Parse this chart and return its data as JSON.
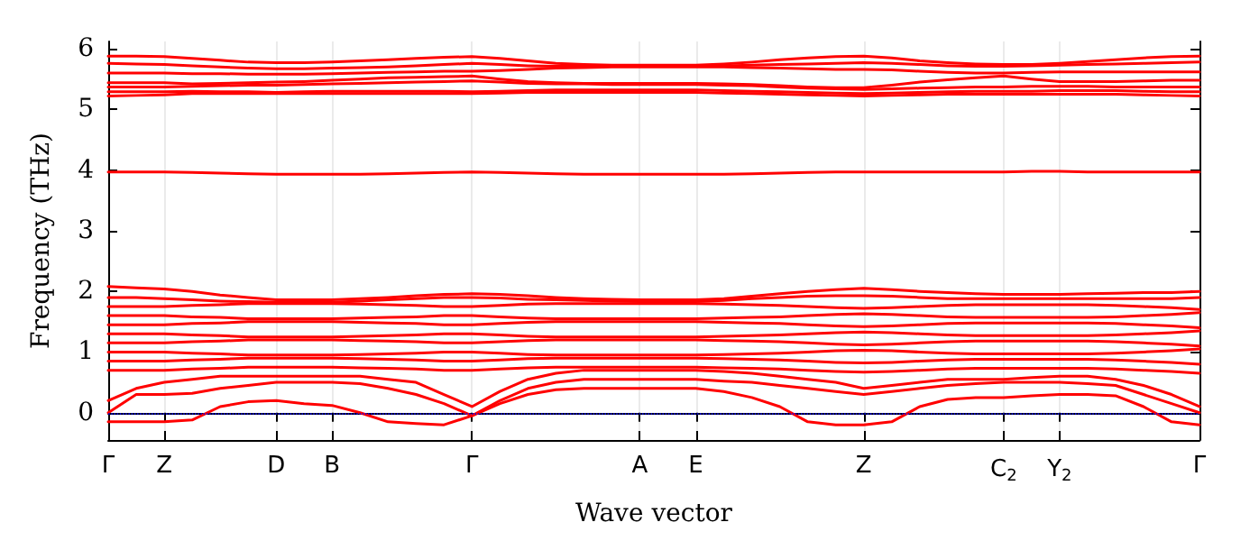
{
  "chart_data": {
    "type": "line",
    "xlabel": "Wave vector",
    "ylabel": "Frequency (THz)",
    "categories": [
      "Γ",
      null,
      "Z",
      null,
      null,
      null,
      "D",
      null,
      "B",
      null,
      null,
      null,
      null,
      "Γ",
      null,
      null,
      null,
      null,
      null,
      "A",
      null,
      "E",
      null,
      null,
      null,
      null,
      null,
      "Z",
      null,
      null,
      null,
      null,
      "C$_{2}$",
      null,
      "Y$_{2}$",
      null,
      null,
      null,
      null,
      "Γ"
    ],
    "ylim": [
      -0.45,
      6.12
    ],
    "yticks": [
      0,
      1,
      2,
      3,
      4,
      5,
      6
    ],
    "grid": "x",
    "marker": "none",
    "line_style": "solid",
    "ref_lines": [
      {
        "axis": "y",
        "value": 0,
        "label": null,
        "color": "#0000ff",
        "line_style": "dotted"
      }
    ],
    "series": [
      {
        "color": "#ff0000",
        "values": [
          -0.15,
          -0.15,
          -0.15,
          -0.12,
          0.1,
          0.18,
          0.2,
          0.15,
          0.12,
          0.0,
          -0.15,
          -0.18,
          -0.2,
          -0.05,
          0.15,
          0.3,
          0.38,
          0.4,
          0.4,
          0.4,
          0.4,
          0.4,
          0.35,
          0.25,
          0.1,
          -0.15,
          -0.2,
          -0.2,
          -0.15,
          0.1,
          0.22,
          0.25,
          0.25,
          0.28,
          0.3,
          0.3,
          0.28,
          0.1,
          -0.15,
          -0.2
        ]
      },
      {
        "color": "#ff0000",
        "values": [
          0,
          0.3,
          0.3,
          0.32,
          0.4,
          0.45,
          0.5,
          0.5,
          0.5,
          0.48,
          0.4,
          0.3,
          0.15,
          -0.05,
          0.2,
          0.4,
          0.5,
          0.55,
          0.55,
          0.55,
          0.55,
          0.55,
          0.52,
          0.5,
          0.45,
          0.4,
          0.35,
          0.3,
          0.35,
          0.4,
          0.45,
          0.48,
          0.5,
          0.5,
          0.5,
          0.48,
          0.45,
          0.3,
          0.15,
          0
        ]
      },
      {
        "color": "#ff0000",
        "values": [
          0.2,
          0.4,
          0.5,
          0.55,
          0.6,
          0.6,
          0.6,
          0.6,
          0.6,
          0.6,
          0.55,
          0.5,
          0.3,
          0.1,
          0.35,
          0.55,
          0.65,
          0.7,
          0.7,
          0.7,
          0.7,
          0.7,
          0.68,
          0.65,
          0.6,
          0.55,
          0.5,
          0.4,
          0.45,
          0.5,
          0.55,
          0.55,
          0.55,
          0.58,
          0.6,
          0.6,
          0.55,
          0.45,
          0.3,
          0.1
        ]
      },
      {
        "color": "#ff0000",
        "values": [
          0.7,
          0.7,
          0.7,
          0.72,
          0.73,
          0.75,
          0.75,
          0.75,
          0.75,
          0.74,
          0.73,
          0.72,
          0.7,
          0.7,
          0.72,
          0.74,
          0.75,
          0.75,
          0.75,
          0.75,
          0.75,
          0.75,
          0.74,
          0.73,
          0.72,
          0.7,
          0.68,
          0.67,
          0.68,
          0.7,
          0.72,
          0.73,
          0.73,
          0.73,
          0.73,
          0.73,
          0.72,
          0.7,
          0.68,
          0.65
        ]
      },
      {
        "color": "#ff0000",
        "values": [
          0.85,
          0.85,
          0.85,
          0.87,
          0.88,
          0.9,
          0.9,
          0.9,
          0.9,
          0.89,
          0.88,
          0.87,
          0.85,
          0.85,
          0.87,
          0.89,
          0.9,
          0.9,
          0.9,
          0.9,
          0.9,
          0.9,
          0.89,
          0.88,
          0.87,
          0.85,
          0.83,
          0.82,
          0.83,
          0.85,
          0.87,
          0.88,
          0.88,
          0.88,
          0.88,
          0.88,
          0.87,
          0.85,
          0.83,
          0.8
        ]
      },
      {
        "color": "#ff0000",
        "values": [
          1.0,
          1.0,
          1.0,
          0.98,
          0.97,
          0.95,
          0.95,
          0.95,
          0.95,
          0.96,
          0.97,
          0.98,
          1.0,
          1.0,
          0.98,
          0.96,
          0.95,
          0.95,
          0.95,
          0.95,
          0.95,
          0.95,
          0.96,
          0.97,
          0.98,
          1.0,
          1.02,
          1.03,
          1.02,
          1.0,
          0.98,
          0.97,
          0.97,
          0.97,
          0.97,
          0.97,
          0.98,
          1.0,
          1.02,
          1.05
        ]
      },
      {
        "color": "#ff0000",
        "values": [
          1.15,
          1.15,
          1.15,
          1.17,
          1.18,
          1.2,
          1.2,
          1.2,
          1.2,
          1.19,
          1.18,
          1.17,
          1.15,
          1.15,
          1.17,
          1.19,
          1.2,
          1.2,
          1.2,
          1.2,
          1.2,
          1.2,
          1.19,
          1.18,
          1.17,
          1.15,
          1.13,
          1.12,
          1.13,
          1.15,
          1.17,
          1.18,
          1.18,
          1.18,
          1.18,
          1.18,
          1.17,
          1.15,
          1.13,
          1.1
        ]
      },
      {
        "color": "#ff0000",
        "values": [
          1.3,
          1.3,
          1.3,
          1.28,
          1.27,
          1.25,
          1.25,
          1.25,
          1.25,
          1.26,
          1.27,
          1.28,
          1.3,
          1.3,
          1.28,
          1.26,
          1.25,
          1.25,
          1.25,
          1.25,
          1.25,
          1.25,
          1.26,
          1.27,
          1.28,
          1.3,
          1.32,
          1.33,
          1.32,
          1.3,
          1.28,
          1.27,
          1.27,
          1.27,
          1.27,
          1.27,
          1.28,
          1.3,
          1.32,
          1.35
        ]
      },
      {
        "color": "#ff0000",
        "values": [
          1.45,
          1.45,
          1.45,
          1.47,
          1.48,
          1.5,
          1.5,
          1.5,
          1.5,
          1.49,
          1.48,
          1.47,
          1.45,
          1.45,
          1.47,
          1.49,
          1.5,
          1.5,
          1.5,
          1.5,
          1.5,
          1.5,
          1.49,
          1.48,
          1.47,
          1.45,
          1.43,
          1.42,
          1.43,
          1.45,
          1.47,
          1.48,
          1.48,
          1.48,
          1.48,
          1.48,
          1.47,
          1.45,
          1.43,
          1.4
        ]
      },
      {
        "color": "#ff0000",
        "values": [
          1.6,
          1.6,
          1.6,
          1.58,
          1.57,
          1.55,
          1.55,
          1.55,
          1.55,
          1.56,
          1.57,
          1.58,
          1.6,
          1.6,
          1.58,
          1.56,
          1.55,
          1.55,
          1.55,
          1.55,
          1.55,
          1.55,
          1.56,
          1.57,
          1.58,
          1.6,
          1.62,
          1.63,
          1.62,
          1.6,
          1.58,
          1.57,
          1.57,
          1.57,
          1.57,
          1.57,
          1.58,
          1.6,
          1.62,
          1.65
        ]
      },
      {
        "color": "#ff0000",
        "values": [
          1.75,
          1.75,
          1.75,
          1.77,
          1.78,
          1.8,
          1.8,
          1.8,
          1.8,
          1.79,
          1.78,
          1.77,
          1.75,
          1.75,
          1.77,
          1.79,
          1.8,
          1.8,
          1.8,
          1.8,
          1.8,
          1.8,
          1.79,
          1.78,
          1.77,
          1.75,
          1.73,
          1.72,
          1.73,
          1.75,
          1.77,
          1.78,
          1.78,
          1.78,
          1.78,
          1.78,
          1.77,
          1.75,
          1.73,
          1.7
        ]
      },
      {
        "color": "#ff0000",
        "values": [
          1.9,
          1.9,
          1.88,
          1.86,
          1.84,
          1.83,
          1.82,
          1.82,
          1.82,
          1.84,
          1.86,
          1.88,
          1.9,
          1.9,
          1.89,
          1.87,
          1.86,
          1.85,
          1.84,
          1.83,
          1.83,
          1.83,
          1.85,
          1.88,
          1.9,
          1.92,
          1.93,
          1.93,
          1.92,
          1.9,
          1.88,
          1.88,
          1.88,
          1.88,
          1.88,
          1.88,
          1.88,
          1.88,
          1.88,
          1.9
        ]
      },
      {
        "color": "#ff0000",
        "values": [
          2.08,
          2.06,
          2.04,
          2.0,
          1.94,
          1.9,
          1.86,
          1.86,
          1.86,
          1.88,
          1.9,
          1.93,
          1.95,
          1.96,
          1.95,
          1.93,
          1.9,
          1.88,
          1.87,
          1.86,
          1.86,
          1.86,
          1.88,
          1.92,
          1.96,
          2.0,
          2.03,
          2.05,
          2.03,
          2.0,
          1.98,
          1.96,
          1.95,
          1.95,
          1.95,
          1.96,
          1.97,
          1.98,
          1.98,
          2.0
        ]
      },
      {
        "color": "#ff0000",
        "values": [
          3.97,
          3.97,
          3.97,
          3.96,
          3.95,
          3.94,
          3.93,
          3.93,
          3.93,
          3.93,
          3.94,
          3.95,
          3.96,
          3.97,
          3.96,
          3.95,
          3.94,
          3.93,
          3.93,
          3.93,
          3.93,
          3.93,
          3.93,
          3.94,
          3.95,
          3.96,
          3.97,
          3.97,
          3.97,
          3.97,
          3.97,
          3.97,
          3.97,
          3.98,
          3.98,
          3.97,
          3.97,
          3.97,
          3.97,
          3.97
        ]
      },
      {
        "color": "#ff0000",
        "values": [
          5.22,
          5.23,
          5.24,
          5.26,
          5.26,
          5.26,
          5.26,
          5.26,
          5.26,
          5.26,
          5.26,
          5.26,
          5.26,
          5.26,
          5.27,
          5.28,
          5.28,
          5.28,
          5.28,
          5.28,
          5.28,
          5.28,
          5.27,
          5.26,
          5.25,
          5.24,
          5.23,
          5.22,
          5.23,
          5.24,
          5.25,
          5.25,
          5.25,
          5.25,
          5.25,
          5.25,
          5.25,
          5.24,
          5.23,
          5.22
        ]
      },
      {
        "color": "#ff0000",
        "values": [
          5.29,
          5.29,
          5.29,
          5.3,
          5.29,
          5.29,
          5.28,
          5.29,
          5.3,
          5.3,
          5.3,
          5.3,
          5.3,
          5.29,
          5.3,
          5.31,
          5.32,
          5.32,
          5.32,
          5.32,
          5.32,
          5.32,
          5.31,
          5.3,
          5.29,
          5.28,
          5.27,
          5.26,
          5.27,
          5.28,
          5.29,
          5.3,
          5.3,
          5.3,
          5.31,
          5.31,
          5.31,
          5.3,
          5.29,
          5.29
        ]
      },
      {
        "color": "#ff0000",
        "values": [
          5.37,
          5.37,
          5.37,
          5.38,
          5.39,
          5.4,
          5.4,
          5.41,
          5.42,
          5.43,
          5.44,
          5.45,
          5.46,
          5.47,
          5.45,
          5.43,
          5.42,
          5.42,
          5.41,
          5.41,
          5.41,
          5.41,
          5.4,
          5.39,
          5.37,
          5.35,
          5.34,
          5.33,
          5.34,
          5.35,
          5.36,
          5.37,
          5.37,
          5.38,
          5.38,
          5.38,
          5.37,
          5.37,
          5.37,
          5.37
        ]
      },
      {
        "color": "#ff0000",
        "values": [
          5.44,
          5.44,
          5.44,
          5.42,
          5.43,
          5.44,
          5.45,
          5.46,
          5.48,
          5.5,
          5.52,
          5.53,
          5.54,
          5.55,
          5.5,
          5.46,
          5.44,
          5.43,
          5.43,
          5.43,
          5.43,
          5.43,
          5.42,
          5.41,
          5.39,
          5.37,
          5.36,
          5.36,
          5.4,
          5.45,
          5.49,
          5.52,
          5.55,
          5.5,
          5.46,
          5.46,
          5.46,
          5.47,
          5.48,
          5.48
        ]
      },
      {
        "color": "#ff0000",
        "values": [
          5.6,
          5.6,
          5.6,
          5.59,
          5.59,
          5.58,
          5.58,
          5.58,
          5.59,
          5.6,
          5.61,
          5.62,
          5.63,
          5.63,
          5.64,
          5.66,
          5.68,
          5.69,
          5.7,
          5.7,
          5.7,
          5.7,
          5.7,
          5.69,
          5.68,
          5.67,
          5.66,
          5.66,
          5.65,
          5.63,
          5.61,
          5.6,
          5.6,
          5.61,
          5.62,
          5.62,
          5.62,
          5.62,
          5.62,
          5.62
        ]
      },
      {
        "color": "#ff0000",
        "values": [
          5.76,
          5.75,
          5.74,
          5.72,
          5.7,
          5.68,
          5.67,
          5.67,
          5.68,
          5.69,
          5.7,
          5.72,
          5.74,
          5.76,
          5.74,
          5.72,
          5.71,
          5.71,
          5.71,
          5.71,
          5.71,
          5.71,
          5.72,
          5.73,
          5.74,
          5.75,
          5.76,
          5.77,
          5.76,
          5.74,
          5.72,
          5.71,
          5.71,
          5.72,
          5.73,
          5.74,
          5.75,
          5.76,
          5.77,
          5.78
        ]
      },
      {
        "color": "#ff0000",
        "values": [
          5.88,
          5.88,
          5.87,
          5.84,
          5.81,
          5.78,
          5.77,
          5.77,
          5.78,
          5.8,
          5.82,
          5.84,
          5.86,
          5.87,
          5.84,
          5.8,
          5.76,
          5.74,
          5.73,
          5.73,
          5.73,
          5.73,
          5.75,
          5.78,
          5.82,
          5.85,
          5.87,
          5.88,
          5.85,
          5.8,
          5.77,
          5.75,
          5.74,
          5.74,
          5.76,
          5.79,
          5.82,
          5.85,
          5.87,
          5.88
        ]
      }
    ]
  }
}
